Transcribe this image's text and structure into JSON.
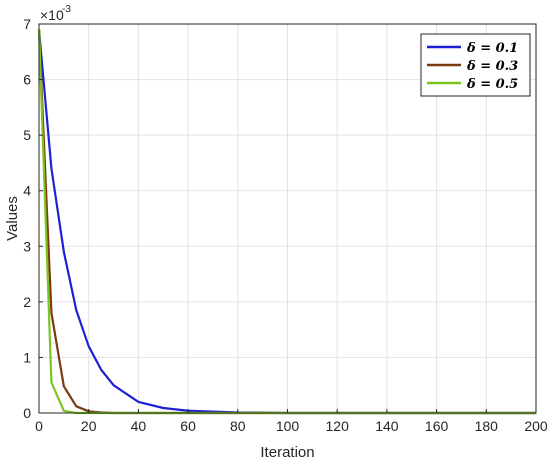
{
  "chart_data": {
    "type": "line",
    "xlabel": "Iteration",
    "ylabel": "Values",
    "y_exponent_label": "×10",
    "y_exponent_power": "-3",
    "xlim": [
      0,
      200
    ],
    "ylim": [
      0,
      0.007
    ],
    "grid": true,
    "legend_position": "top-right",
    "x_ticks": [
      0,
      20,
      40,
      60,
      80,
      100,
      120,
      140,
      160,
      180,
      200
    ],
    "y_ticks": [
      0,
      0.001,
      0.002,
      0.003,
      0.004,
      0.005,
      0.006,
      0.007
    ],
    "x_tick_labels": [
      "0",
      "20",
      "40",
      "60",
      "80",
      "100",
      "120",
      "140",
      "160",
      "180",
      "200"
    ],
    "y_tick_labels": [
      "0",
      "1",
      "2",
      "3",
      "4",
      "5",
      "6",
      "7"
    ],
    "x": [
      0,
      5,
      10,
      15,
      20,
      25,
      30,
      40,
      50,
      60,
      80,
      100,
      150,
      200
    ],
    "series": [
      {
        "name": "δ = 0.1",
        "color": "#1f1fd6",
        "values": [
          0.0069,
          0.0044,
          0.0029,
          0.00185,
          0.0012,
          0.00078,
          0.0005,
          0.0002,
          9e-05,
          4e-05,
          1e-05,
          0.0,
          0.0,
          0.0
        ]
      },
      {
        "name": "δ = 0.3",
        "color": "#7a3a10",
        "values": [
          0.0069,
          0.0018,
          0.00048,
          0.00012,
          3e-05,
          1e-05,
          0.0,
          0.0,
          0.0,
          0.0,
          0.0,
          0.0,
          0.0,
          0.0
        ]
      },
      {
        "name": "δ = 0.5",
        "color": "#7cc41e",
        "values": [
          0.0069,
          0.00055,
          4e-05,
          0.0,
          0.0,
          0.0,
          0.0,
          0.0,
          0.0,
          0.0,
          0.0,
          0.0,
          0.0,
          0.0
        ]
      }
    ]
  }
}
